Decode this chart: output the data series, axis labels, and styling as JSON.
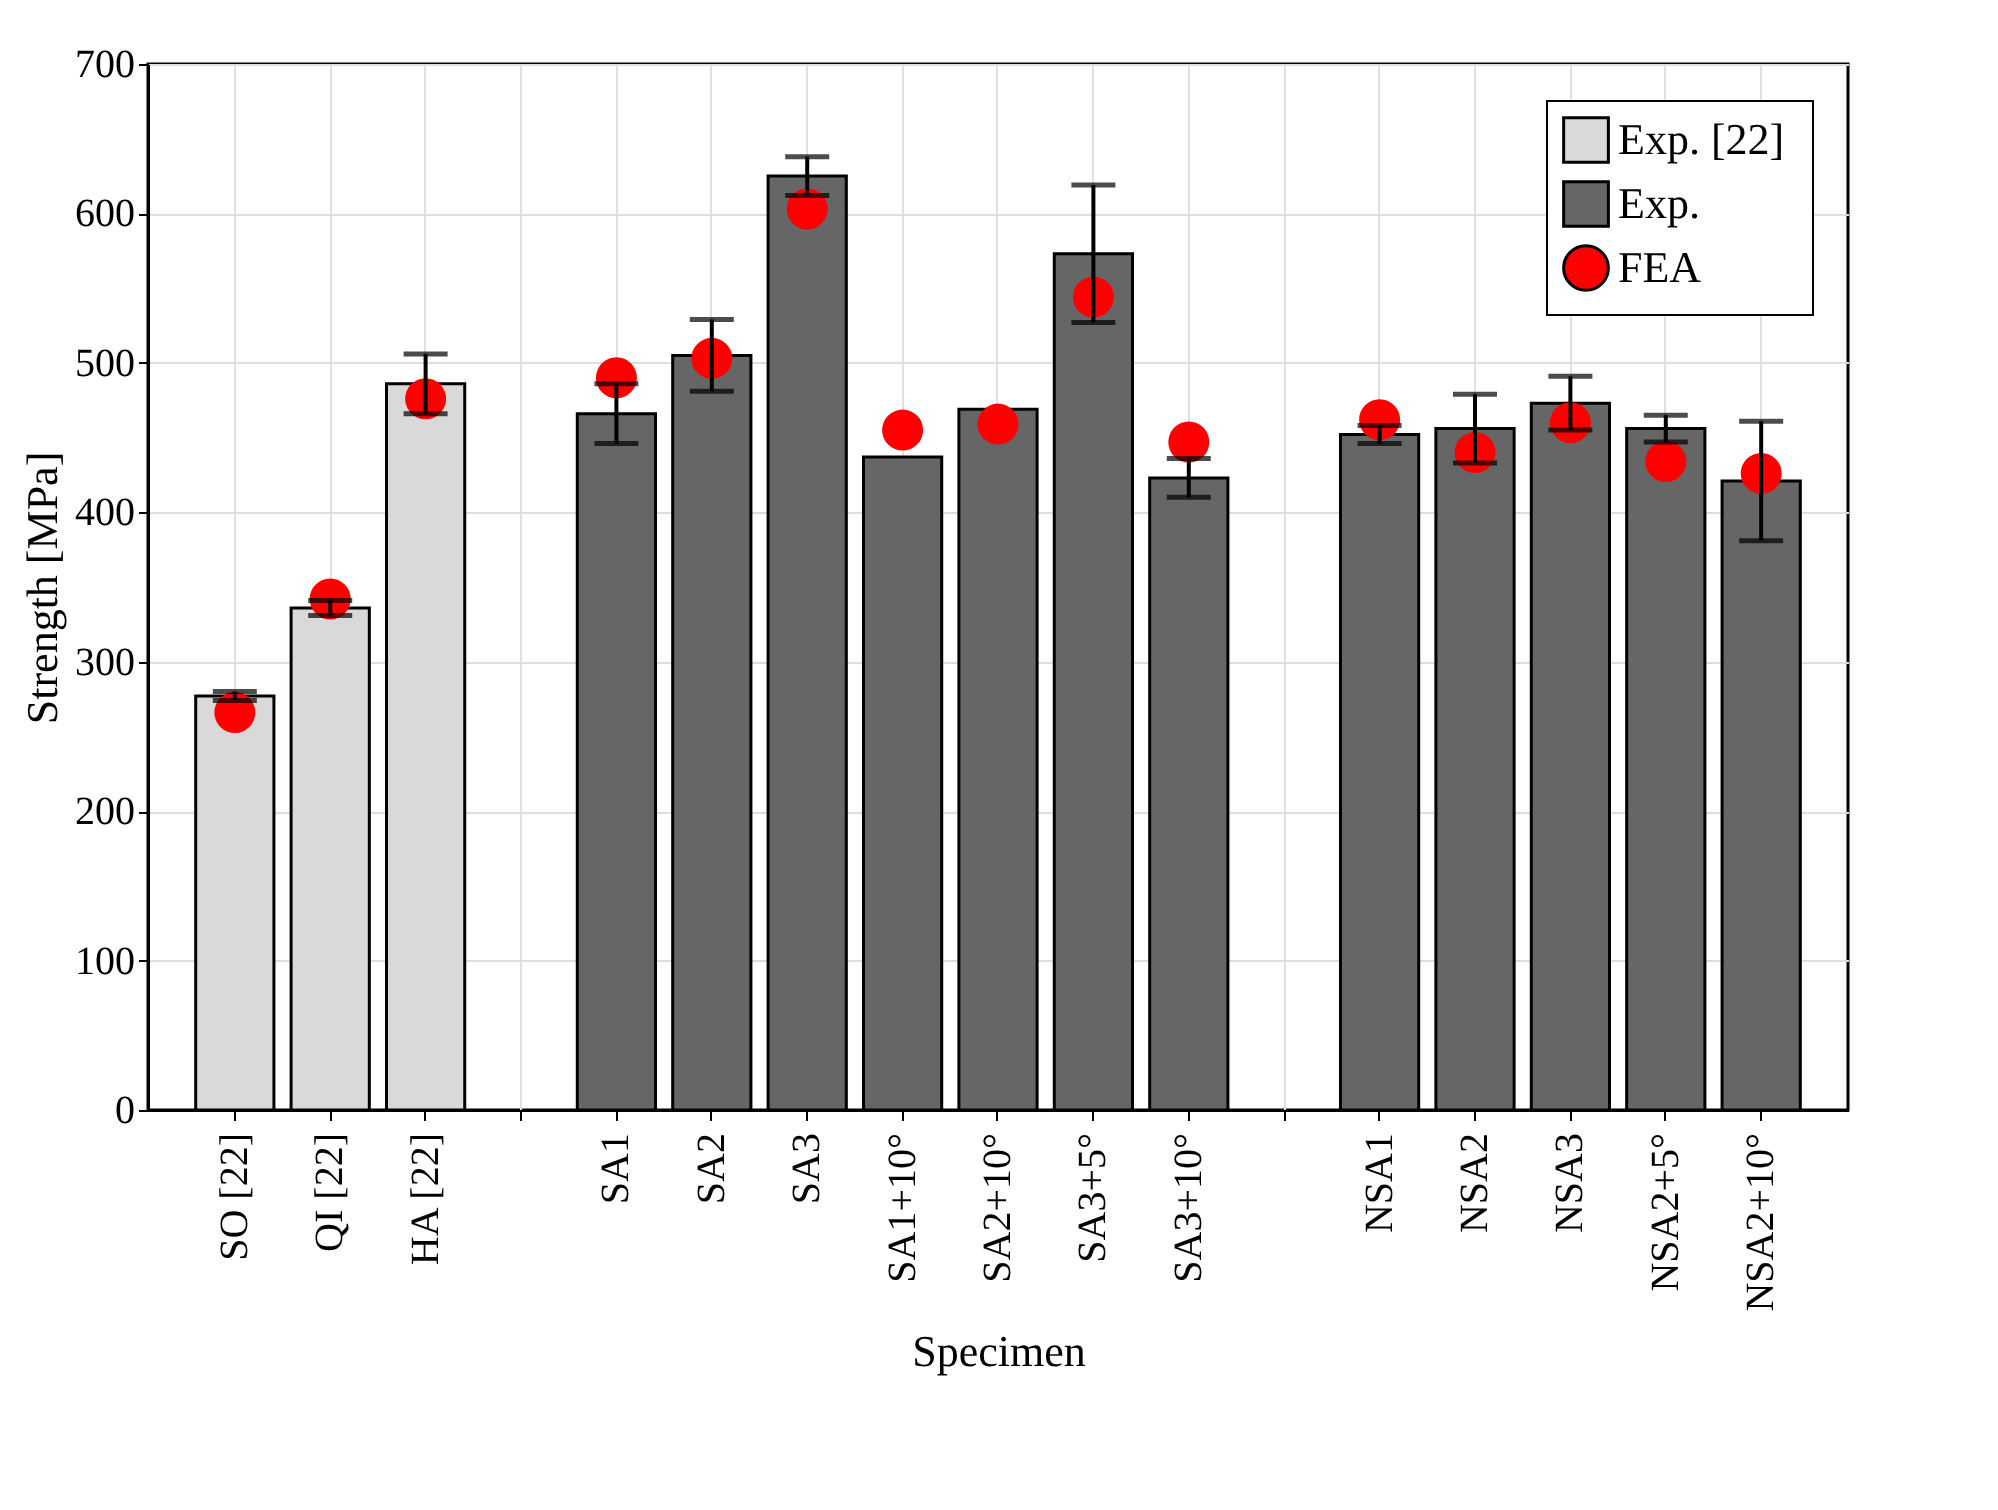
{
  "chart_data": {
    "type": "bar",
    "xlabel": "Specimen",
    "ylabel": "Strength [MPa]",
    "categories": [
      "SO [22]",
      "QI [22]",
      "HA [22]",
      null,
      "SA1",
      "SA2",
      "SA3",
      "SA1+10°",
      "SA2+10°",
      "SA3+5°",
      "SA3+10°",
      null,
      "NSA1",
      "NSA2",
      "NSA3",
      "NSA2+5°",
      "NSA2+10°"
    ],
    "series": [
      {
        "name": "Exp.  [22]",
        "color": "#d9d9d9",
        "values": [
          277,
          336,
          486,
          null,
          null,
          null,
          null,
          null,
          null,
          null,
          null,
          null,
          null,
          null,
          null,
          null,
          null
        ],
        "errors": [
          3,
          5,
          20,
          null,
          null,
          null,
          null,
          null,
          null,
          null,
          null,
          null,
          null,
          null,
          null,
          null,
          null
        ]
      },
      {
        "name": "Exp.",
        "color": "#666666",
        "values": [
          null,
          null,
          null,
          null,
          466,
          505,
          625,
          437,
          469,
          573,
          423,
          null,
          452,
          456,
          473,
          456,
          421
        ],
        "errors": [
          null,
          null,
          null,
          null,
          20,
          24,
          13,
          null,
          null,
          46,
          13,
          null,
          6,
          23,
          18,
          9,
          40
        ]
      },
      {
        "name": "FEA",
        "type": "scatter",
        "marker": "circle",
        "color": "#ff0000",
        "values": [
          266,
          342,
          476,
          null,
          490,
          503,
          603,
          455,
          459,
          544,
          447,
          null,
          462,
          440,
          460,
          434,
          426
        ]
      }
    ],
    "ylim": [
      0,
      700
    ],
    "yticks": [
      0,
      100,
      200,
      300,
      400,
      500,
      600,
      700
    ],
    "grid": true,
    "legend": "top right"
  }
}
